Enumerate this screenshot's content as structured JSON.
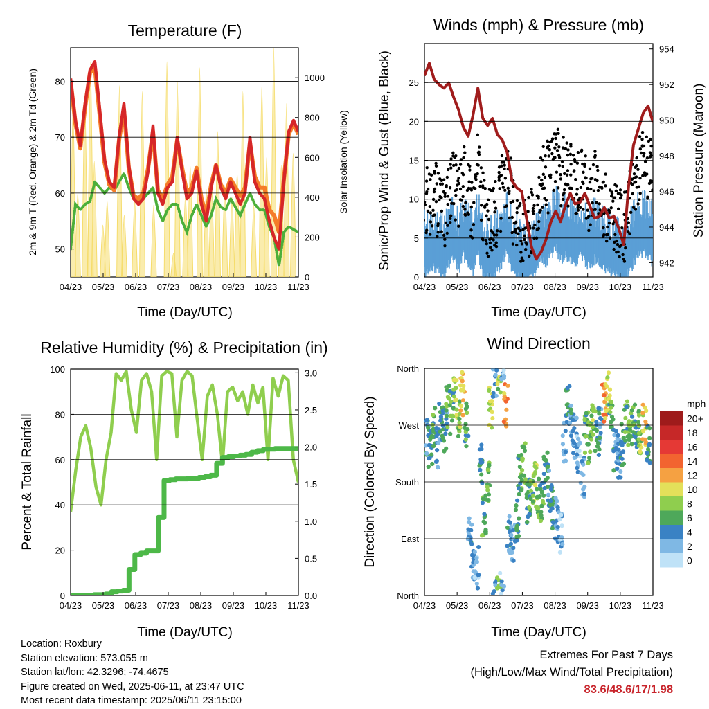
{
  "info": {
    "location": "Location: Roxbury",
    "elevation": "Station elevation: 573.055 m",
    "latlon": "Station lat/lon: 42.3296; -74.4675",
    "created": "Figure created on Wed, 2025-06-11, at 23:47 UTC",
    "latest": "Most recent data timestamp: 2025/06/11 23:15:00"
  },
  "extremes": {
    "title": "Extremes For Past 7 Days",
    "subtitle": "(High/Low/Max Wind/Total Precipitation)",
    "values": "83.6/48.6/17/1.98"
  },
  "colors": {
    "temp_2m": "#d62728",
    "temp_9m": "#f57c28",
    "dewpoint": "#4caf3a",
    "solar": "#f5dc6a",
    "wind_sonic": "#5a9fd6",
    "gust": "#000000",
    "pressure": "#a01c1c",
    "rh": "#8fce4e",
    "precip": "#4db848"
  },
  "chart_data": [
    {
      "type": "line",
      "title": "Temperature (F)",
      "xlabel": "Time (Day/UTC)",
      "ylabel": "2m & 9m T (Red, Orange) & 2m Td (Green)",
      "y2label": "Solar Insolation (Yellow)",
      "x_ticks": [
        "04/23",
        "05/23",
        "06/23",
        "07/23",
        "08/23",
        "09/23",
        "10/23",
        "11/23"
      ],
      "ylim": [
        45,
        86
      ],
      "yticks": [
        50,
        60,
        70,
        80
      ],
      "y2lim": [
        0,
        1150
      ],
      "y2ticks": [
        0,
        200,
        400,
        600,
        800,
        1000
      ],
      "grid": true,
      "series": [
        {
          "name": "2m T",
          "axis": "left",
          "values": [
            80.5,
            73,
            68.5,
            76,
            82,
            83.5,
            75,
            66,
            62,
            61,
            70,
            76,
            65,
            59,
            58,
            59,
            64,
            72,
            60,
            58,
            61,
            62,
            70,
            64,
            59,
            60,
            64,
            58,
            55,
            61,
            65,
            61,
            59,
            62,
            60,
            58,
            60,
            70,
            62,
            60,
            59,
            55,
            52,
            50,
            62,
            71,
            73,
            71
          ]
        },
        {
          "name": "9m T",
          "axis": "left",
          "values": [
            80,
            72.5,
            68,
            75.5,
            81.5,
            82.5,
            74,
            65.5,
            61.5,
            60.5,
            69.5,
            75,
            64.5,
            59.5,
            59,
            60,
            64.5,
            71,
            60.5,
            59,
            61.5,
            63,
            69.5,
            64.5,
            60,
            61,
            64.5,
            59,
            56,
            61.5,
            65,
            61.5,
            60,
            62.5,
            61,
            59.5,
            61,
            69,
            63,
            61,
            61,
            57,
            56,
            53,
            62.5,
            70.5,
            72.5,
            70.5
          ]
        },
        {
          "name": "2m Td",
          "axis": "left",
          "values": [
            50,
            58,
            57,
            58,
            58.5,
            62,
            61,
            60,
            61,
            60.5,
            62,
            63.5,
            61,
            59,
            58.5,
            59,
            60,
            61,
            57,
            55,
            57,
            58,
            58,
            55,
            53,
            56,
            58,
            56,
            54,
            56,
            59,
            57.5,
            57,
            59,
            57.5,
            56,
            58,
            60,
            58,
            57,
            57,
            54,
            52,
            47,
            53,
            54,
            53.5,
            53
          ]
        },
        {
          "name": "Solar Insolation",
          "axis": "right",
          "type": "filled-spikes",
          "x": [
            0.5,
            1.5,
            3.0,
            4.2,
            5.0,
            6.8,
            7.7,
            10.3,
            11.3,
            13.5,
            15.1,
            17.5,
            20.3,
            21.7,
            22.5,
            24.2,
            25.2,
            27.2,
            28.6,
            29.7,
            31.0,
            32.5,
            34.0,
            35.1,
            36.3,
            38.6,
            40.3,
            41.3,
            42.8,
            44.4,
            45.5,
            46.9
          ],
          "values": [
            850,
            420,
            900,
            1080,
            580,
            260,
            380,
            960,
            310,
            380,
            930,
            360,
            1080,
            120,
            980,
            410,
            560,
            1050,
            440,
            480,
            730,
            460,
            400,
            520,
            930,
            360,
            960,
            600,
            1150,
            560,
            870,
            620
          ]
        }
      ]
    },
    {
      "type": "scatter",
      "title": "Winds (mph) & Pressure (mb)",
      "xlabel": "Time (Day/UTC)",
      "ylabel": "Sonic/Prop Wind & Gust (Blue, Black)",
      "y2label": "Station Pressure (Maroon)",
      "x_ticks": [
        "04/23",
        "05/23",
        "06/23",
        "07/23",
        "08/23",
        "09/23",
        "10/23",
        "11/23"
      ],
      "ylim": [
        0,
        30
      ],
      "yticks": [
        0,
        5,
        10,
        15,
        20,
        25
      ],
      "y2lim": [
        941.2,
        954.3
      ],
      "y2ticks": [
        942,
        944,
        946,
        948,
        950,
        952,
        954
      ],
      "grid": true,
      "series": [
        {
          "name": "Station Pressure",
          "axis": "right",
          "type": "line",
          "values": [
            952.5,
            953.2,
            952.3,
            952,
            951.8,
            952.1,
            951.3,
            950.6,
            949.6,
            949.1,
            950.3,
            951.8,
            950.1,
            949.7,
            950.1,
            949.2,
            948.9,
            948.2,
            946.6,
            946.2,
            946,
            944.5,
            942.9,
            942.2,
            942.6,
            943.3,
            944.3,
            944.9,
            944.3,
            945.2,
            945.9,
            945.3,
            945.4,
            945.9,
            945.2,
            944.5,
            944.6,
            945.1,
            944.5,
            944.6,
            943.9,
            943,
            946.3,
            948.6,
            949.5,
            950.4,
            950.8,
            949.9
          ]
        },
        {
          "name": "Sonic/Prop Wind",
          "axis": "left",
          "type": "bars",
          "values": [
            4,
            3.5,
            4.5,
            4,
            3,
            5,
            5.5,
            4,
            6,
            5,
            4,
            6.5,
            3.5,
            3,
            3,
            4,
            5,
            6.5,
            4,
            3.5,
            2,
            2.5,
            3,
            4,
            6,
            5,
            6,
            7,
            5.5,
            6,
            5.5,
            5,
            6,
            5,
            4.5,
            5.5,
            5,
            4,
            4,
            3.5,
            3,
            2.5,
            4,
            5,
            6,
            6.5,
            6,
            5
          ]
        },
        {
          "name": "Gust",
          "axis": "left",
          "type": "dots",
          "values": [
            10,
            9.5,
            11,
            9,
            8,
            11,
            12,
            10,
            13,
            11,
            9,
            15,
            9,
            7,
            7,
            9,
            11,
            14,
            9,
            8,
            6,
            6,
            7,
            9,
            13,
            12,
            14,
            16,
            13,
            14,
            13,
            12,
            13,
            12,
            10,
            12,
            11,
            9,
            9,
            8,
            7,
            6,
            9,
            11,
            14,
            15,
            14,
            12
          ]
        }
      ]
    },
    {
      "type": "line",
      "title": "Relative Humidity (%) & Precipitation (in)",
      "xlabel": "Time (Day/UTC)",
      "ylabel": "Percent & Total Rainfall",
      "x_ticks": [
        "04/23",
        "05/23",
        "06/23",
        "07/23",
        "08/23",
        "09/23",
        "10/23",
        "11/23"
      ],
      "ylim": [
        0,
        100
      ],
      "yticks": [
        0,
        20,
        40,
        60,
        80,
        100
      ],
      "y2lim": [
        0,
        3.05
      ],
      "y2ticks": [
        "0.0",
        "0.5",
        "1.0",
        "1.5",
        "2.0",
        "2.5",
        "3.0"
      ],
      "grid": true,
      "series": [
        {
          "name": "Relative Humidity",
          "axis": "left",
          "values": [
            37,
            55,
            70,
            75,
            65,
            48,
            40,
            60,
            72,
            98,
            95,
            99,
            82,
            72,
            95,
            98,
            90,
            60,
            97,
            99,
            98,
            70,
            95,
            99,
            97,
            78,
            60,
            88,
            93,
            80,
            58,
            90,
            92,
            86,
            90,
            80,
            93,
            85,
            92,
            60,
            96,
            88,
            97,
            95,
            60,
            50
          ]
        },
        {
          "name": "Total Precipitation",
          "axis": "right",
          "values": [
            0,
            0,
            0,
            0,
            0.01,
            0.01,
            0.02,
            0.05,
            0.06,
            0.07,
            0.35,
            0.55,
            0.57,
            0.6,
            0.6,
            1.05,
            1.55,
            1.56,
            1.57,
            1.57,
            1.58,
            1.58,
            1.59,
            1.6,
            1.62,
            1.78,
            1.86,
            1.87,
            1.88,
            1.89,
            1.9,
            1.93,
            1.95,
            1.97,
            1.97,
            1.98,
            1.98,
            1.98,
            1.98,
            1.98
          ]
        }
      ]
    },
    {
      "type": "scatter",
      "title": "Wind Direction",
      "xlabel": "Time (Day/UTC)",
      "ylabel": "Direction (Colored By Speed)",
      "x_ticks": [
        "04/23",
        "05/23",
        "06/23",
        "07/23",
        "08/23",
        "09/23",
        "10/23",
        "11/23"
      ],
      "ylim": [
        0,
        360
      ],
      "yticks": [
        "North",
        "East",
        "South",
        "West",
        "North"
      ],
      "grid": true,
      "legend": {
        "title": "mph",
        "labels": [
          "20+",
          "18",
          "16",
          "14",
          "12",
          "10",
          "8",
          "6",
          "4",
          "2",
          "0"
        ],
        "colors": [
          "#9e1b1b",
          "#c62828",
          "#e53935",
          "#f26430",
          "#f5a142",
          "#e3e05a",
          "#8fce4e",
          "#4ea85a",
          "#3a82c4",
          "#7fb8e4",
          "#bfe2f7"
        ]
      },
      "series": [
        {
          "name": "Wind Direction",
          "type": "dots",
          "x_day": [
            0.5,
            1.2,
            2.0,
            2.8,
            3.5,
            4.3,
            5.0,
            5.8,
            6.5,
            7.2,
            8.0,
            8.8,
            9.5,
            10.3,
            11.0,
            11.8,
            12.5,
            13.3,
            14.0,
            14.8,
            15.6,
            16.3,
            17.1,
            17.8,
            18.6,
            19.4,
            20.1,
            20.9,
            21.7,
            22.4,
            23.2,
            24.0,
            24.7,
            25.5,
            26.3,
            27.0,
            27.8,
            28.6,
            29.3,
            30.1,
            30.9,
            31.6,
            32.4,
            33.2,
            34.0,
            34.7,
            35.5,
            36.3,
            37.0,
            37.8,
            38.6,
            39.3,
            40.1,
            40.9,
            41.6,
            42.4,
            43.2,
            43.9,
            44.7,
            45.5,
            46.2,
            47.0
          ],
          "direction": [
            250,
            230,
            270,
            235,
            275,
            260,
            300,
            290,
            310,
            285,
            320,
            270,
            90,
            60,
            45,
            210,
            130,
            180,
            300,
            350,
            355,
            10,
            300,
            95,
            80,
            120,
            190,
            210,
            150,
            160,
            175,
            155,
            145,
            200,
            165,
            140,
            120,
            100,
            240,
            300,
            280,
            250,
            220,
            190,
            260,
            240,
            270,
            250,
            275,
            300,
            320,
            290,
            230,
            220,
            240,
            280,
            260,
            270,
            260,
            255,
            270,
            240
          ],
          "speed": [
            4,
            5,
            6,
            3,
            5,
            4,
            7,
            6,
            9,
            8,
            11,
            6,
            4,
            3,
            2,
            5,
            6,
            7,
            9,
            3,
            8,
            2,
            12,
            4,
            3,
            5,
            6,
            7,
            5,
            6,
            8,
            7,
            6,
            5,
            4,
            5,
            3,
            2,
            3,
            5,
            4,
            3,
            2,
            3,
            6,
            7,
            8,
            5,
            4,
            12,
            9,
            6,
            4,
            3,
            5,
            6,
            7,
            6,
            5,
            8,
            11,
            5
          ]
        }
      ]
    }
  ]
}
